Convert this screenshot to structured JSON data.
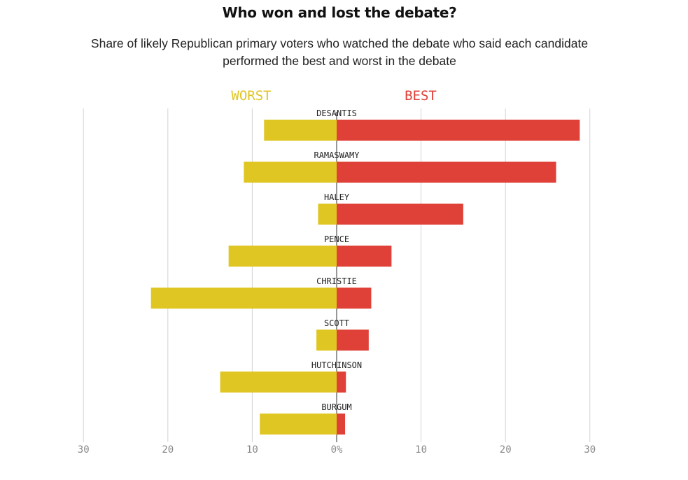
{
  "header": {
    "title": "Who won and lost the debate?",
    "subtitle": "Share of likely Republican primary voters who watched the debate who said each candidate performed the best and worst in the debate"
  },
  "chart_data": {
    "type": "bar",
    "orientation": "horizontal-diverging",
    "categories": [
      "DESANTIS",
      "RAMASWAMY",
      "HALEY",
      "PENCE",
      "CHRISTIE",
      "SCOTT",
      "HUTCHINSON",
      "BURGUM"
    ],
    "series": [
      {
        "name": "WORST",
        "color": "#e0c623",
        "values": [
          8.6,
          11,
          2.2,
          12.8,
          22,
          2.4,
          13.8,
          9.1
        ]
      },
      {
        "name": "BEST",
        "color": "#df4138",
        "values": [
          28.8,
          26,
          15,
          6.5,
          4.1,
          3.8,
          1.1,
          1.0
        ]
      }
    ],
    "xlim": [
      -30,
      30
    ],
    "ticks": [
      {
        "value": -30,
        "label": "30"
      },
      {
        "value": -20,
        "label": "20"
      },
      {
        "value": -10,
        "label": "10"
      },
      {
        "value": 0,
        "label": "0%"
      },
      {
        "value": 10,
        "label": "10"
      },
      {
        "value": 20,
        "label": "20"
      },
      {
        "value": 30,
        "label": "30"
      }
    ],
    "grid": true,
    "gridColor": "#d4d4d4",
    "labelColor": "#222222",
    "tickColor": "#888888"
  }
}
